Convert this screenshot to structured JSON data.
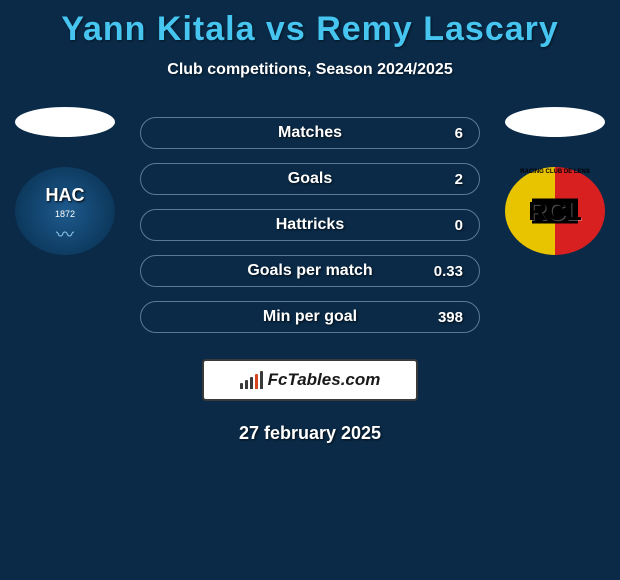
{
  "header": {
    "title": "Yann Kitala vs Remy Lascary",
    "subtitle": "Club competitions, Season 2024/2025",
    "title_color": "#46c5f0",
    "title_fontsize": 34,
    "subtitle_fontsize": 16
  },
  "background_color": "#0a2a47",
  "stats": [
    {
      "label": "Matches",
      "value_right": "6"
    },
    {
      "label": "Goals",
      "value_right": "2"
    },
    {
      "label": "Hattricks",
      "value_right": "0"
    },
    {
      "label": "Goals per match",
      "value_right": "0.33"
    },
    {
      "label": "Min per goal",
      "value_right": "398"
    }
  ],
  "players": {
    "left": {
      "name": "Yann Kitala",
      "club_primary_label": "HAC",
      "club_year": "1872",
      "badge_bg": "#0d3a5f"
    },
    "right": {
      "name": "Remy Lascary",
      "club_primary_label": "RCL",
      "club_arc_text": "RACING CLUB DE LENS",
      "badge_colors": [
        "#e8c400",
        "#d92020"
      ]
    }
  },
  "footer": {
    "logo_text": "FcTables.com",
    "logo_bar_colors": [
      "#3a3a3a",
      "#3a3a3a",
      "#3a3a3a",
      "#d94420",
      "#3a3a3a"
    ],
    "logo_bar_heights": [
      6,
      9,
      12,
      15,
      18
    ],
    "date": "27 february 2025"
  },
  "styling": {
    "stat_row_border": "#5a7a95",
    "stat_text_color": "#ffffff",
    "stat_row_height": 32,
    "stat_row_radius": 16
  }
}
